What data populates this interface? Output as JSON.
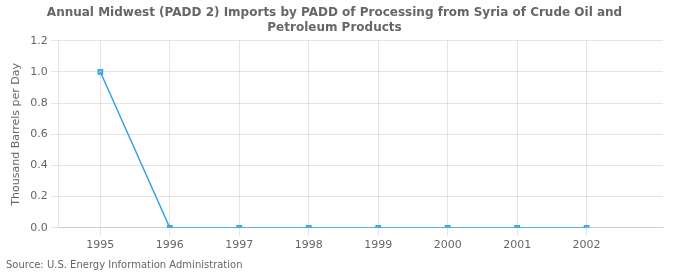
{
  "chart_data": {
    "type": "line",
    "title": "Annual Midwest (PADD 2) Imports by PADD of Processing from Syria of Crude Oil and\nPetroleum Products",
    "y_label": "Thousand Barrels per Day",
    "annotation": "Source: U.S. Energy Information Administration",
    "x": [
      1995,
      1996,
      1997,
      1998,
      1999,
      2000,
      2001,
      2002
    ],
    "values": [
      1.0,
      0.0,
      0.0,
      0.0,
      0.0,
      0.0,
      0.0,
      0.0
    ],
    "marker": "square",
    "xlim": [
      1994.4,
      2003.1
    ],
    "xticks": [
      1995,
      1996,
      1997,
      1998,
      1999,
      2000,
      2001,
      2002
    ],
    "ylim": [
      0.0,
      1.2
    ],
    "yticks": [
      {
        "value": 0.0,
        "label": "0.0"
      },
      0.2,
      0.4,
      0.6,
      0.8,
      {
        "value": 1.0,
        "label": "1.0"
      },
      1.2
    ],
    "grid": true
  }
}
